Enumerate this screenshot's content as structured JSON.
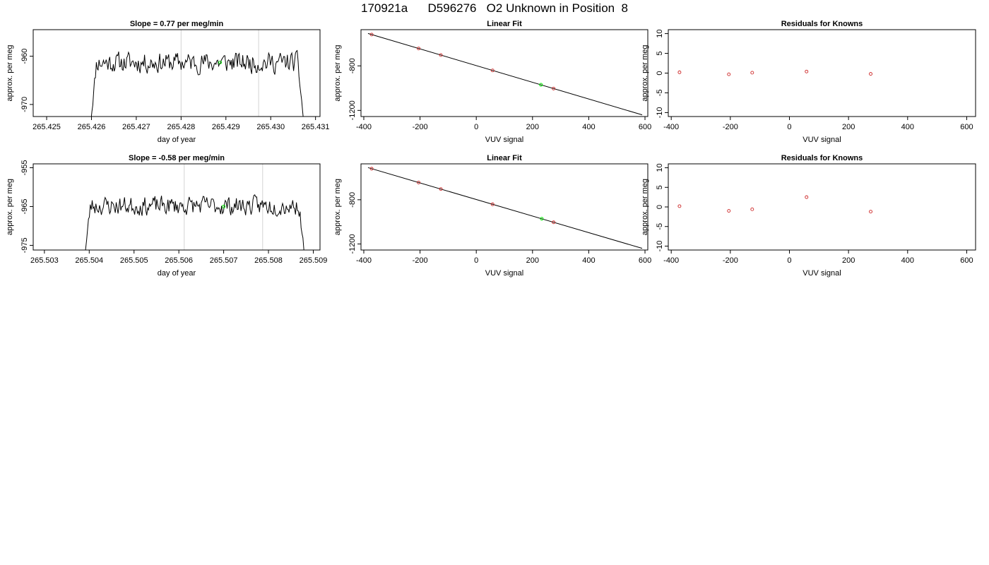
{
  "page": {
    "title": "170921a      D596276   O2 Unknown in Position  8"
  },
  "colors": {
    "trace": "#000000",
    "vline": "#d3d3d3",
    "known_point": "#cd2626",
    "unknown_point": "#00ee00",
    "frame": "#000000"
  },
  "chart_data": [
    {
      "type": "line",
      "title": "Slope =  0.77  per meg/min",
      "xlabel": "day of year",
      "ylabel": "approx. per meg",
      "xlim": [
        265.4247,
        265.4311
      ],
      "ylim": [
        -972.5,
        -954.5
      ],
      "xticks": [
        265.425,
        265.426,
        265.427,
        265.428,
        265.429,
        265.43,
        265.431
      ],
      "xtick_labels": [
        "265.425",
        "265.426",
        "265.427",
        "265.428",
        "265.429",
        "265.430",
        "265.431"
      ],
      "yticks": [
        -960,
        -970
      ],
      "ytick_labels": [
        "-960",
        "-970"
      ],
      "vlines": [
        265.428,
        265.42973
      ],
      "trace": {
        "x_start": 265.42597,
        "x_end": 265.43075,
        "samples": 240,
        "level": -961.3,
        "amplitude": 2.9,
        "seed": 11,
        "start_low": -975,
        "end_low": -975
      },
      "highlight": {
        "x": 265.42887,
        "y": -961.3
      }
    },
    {
      "type": "scatter",
      "title": "Linear Fit",
      "xlabel": "VUV signal",
      "ylabel": "approx. per meg",
      "xlim": [
        -410,
        610
      ],
      "ylim": [
        -1255,
        -475
      ],
      "xticks": [
        -400,
        -200,
        0,
        200,
        400,
        600
      ],
      "xtick_labels": [
        "-400",
        "-200",
        "0",
        "200",
        "400",
        "600"
      ],
      "yticks": [
        -800,
        -1200
      ],
      "ytick_labels": [
        "-800",
        "-1200"
      ],
      "fit_line": {
        "x": [
          -385,
          590
        ],
        "y": [
          -509,
          -1240
        ]
      },
      "points": [
        {
          "x": -372,
          "y": -519
        },
        {
          "x": -205,
          "y": -644
        },
        {
          "x": -126,
          "y": -703
        },
        {
          "x": 58,
          "y": -841
        },
        {
          "x": 275,
          "y": -1004
        }
      ],
      "unknown": {
        "x": 230,
        "y": -970
      }
    },
    {
      "type": "scatter",
      "title": "Residuals for Knowns",
      "xlabel": "VUV signal",
      "ylabel": "approx. per meg",
      "xlim": [
        -410,
        630
      ],
      "ylim": [
        -11,
        11
      ],
      "xticks": [
        -400,
        -200,
        0,
        200,
        400,
        600
      ],
      "xtick_labels": [
        "-400",
        "-200",
        "0",
        "200",
        "400",
        "600"
      ],
      "yticks": [
        10,
        5,
        0,
        -5,
        -10
      ],
      "ytick_labels": [
        "10",
        "5",
        "0",
        "-5",
        "-10"
      ],
      "points": [
        {
          "x": -372,
          "y": 0.2
        },
        {
          "x": -205,
          "y": -0.3
        },
        {
          "x": -126,
          "y": 0.1
        },
        {
          "x": 58,
          "y": 0.4
        },
        {
          "x": 275,
          "y": -0.2
        }
      ]
    },
    {
      "type": "line",
      "title": "Slope =  -0.58  per meg/min",
      "xlabel": "day of year",
      "ylabel": "approx. per meg",
      "xlim": [
        265.50275,
        265.50915
      ],
      "ylim": [
        -976.2,
        -954.0
      ],
      "xticks": [
        265.503,
        265.504,
        265.505,
        265.506,
        265.507,
        265.508,
        265.509
      ],
      "xtick_labels": [
        "265.503",
        "265.504",
        "265.505",
        "265.506",
        "265.507",
        "265.508",
        "265.509"
      ],
      "yticks": [
        -955,
        -965,
        -975
      ],
      "ytick_labels": [
        "-955",
        "-965",
        "-975"
      ],
      "vlines": [
        265.50612,
        265.50787
      ],
      "trace": {
        "x_start": 265.50388,
        "x_end": 265.50883,
        "samples": 240,
        "level": -964.8,
        "amplitude": 3.3,
        "seed": 23,
        "start_low": -980,
        "end_low": -980
      },
      "highlight": {
        "x": 265.507,
        "y": -965.0
      }
    },
    {
      "type": "scatter",
      "title": "Linear Fit",
      "xlabel": "VUV signal",
      "ylabel": "approx. per meg",
      "xlim": [
        -410,
        610
      ],
      "ylim": [
        -1255,
        -475
      ],
      "xticks": [
        -400,
        -200,
        0,
        200,
        400,
        600
      ],
      "xtick_labels": [
        "-400",
        "-200",
        "0",
        "200",
        "400",
        "600"
      ],
      "yticks": [
        -800,
        -1200
      ],
      "ytick_labels": [
        "-800",
        "-1200"
      ],
      "fit_line": {
        "x": [
          -385,
          590
        ],
        "y": [
          -509,
          -1240
        ]
      },
      "points": [
        {
          "x": -372,
          "y": -519
        },
        {
          "x": -205,
          "y": -644
        },
        {
          "x": -126,
          "y": -703
        },
        {
          "x": 58,
          "y": -841
        },
        {
          "x": 275,
          "y": -1004
        }
      ],
      "unknown": {
        "x": 233,
        "y": -972
      }
    },
    {
      "type": "scatter",
      "title": "Residuals for Knowns",
      "xlabel": "VUV signal",
      "ylabel": "approx. per meg",
      "xlim": [
        -410,
        630
      ],
      "ylim": [
        -11,
        11
      ],
      "xticks": [
        -400,
        -200,
        0,
        200,
        400,
        600
      ],
      "xtick_labels": [
        "-400",
        "-200",
        "0",
        "200",
        "400",
        "600"
      ],
      "yticks": [
        10,
        5,
        0,
        -5,
        -10
      ],
      "ytick_labels": [
        "10",
        "5",
        "0",
        "-5",
        "-10"
      ],
      "points": [
        {
          "x": -372,
          "y": 0.2
        },
        {
          "x": -205,
          "y": -1.0
        },
        {
          "x": -126,
          "y": -0.6
        },
        {
          "x": 58,
          "y": 2.5
        },
        {
          "x": 275,
          "y": -1.2
        }
      ]
    }
  ]
}
